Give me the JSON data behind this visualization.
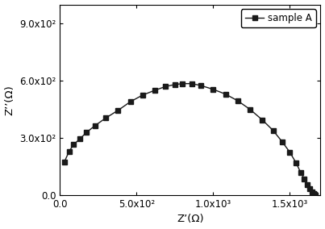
{
  "title": "",
  "xlabel": "Z’(Ω)",
  "ylabel": "Z’’(Ω)",
  "legend_label": "sample A",
  "marker": "s",
  "color": "#1a1a1a",
  "linewidth": 1.0,
  "markersize": 5,
  "xlim": [
    0,
    1700
  ],
  "ylim": [
    0,
    1000
  ],
  "xticks": [
    0,
    500,
    1000,
    1500
  ],
  "yticks": [
    0,
    300,
    600,
    900
  ],
  "xtick_labels": [
    "0.0",
    "5.0x10²",
    "1.0x10³",
    "1.5x10³"
  ],
  "ytick_labels": [
    "0.0",
    "3.0x10²",
    "6.0x10²",
    "9.0x10²"
  ],
  "x_data": [
    30,
    60,
    90,
    130,
    175,
    230,
    300,
    380,
    460,
    540,
    620,
    690,
    750,
    800,
    860,
    920,
    1000,
    1080,
    1160,
    1240,
    1320,
    1390,
    1450,
    1500,
    1540,
    1570,
    1595,
    1615,
    1630,
    1645,
    1655,
    1662,
    1668
  ],
  "y_data": [
    175,
    230,
    265,
    295,
    330,
    365,
    405,
    445,
    490,
    525,
    550,
    570,
    580,
    585,
    585,
    575,
    555,
    530,
    495,
    450,
    395,
    340,
    280,
    225,
    170,
    120,
    85,
    55,
    35,
    18,
    10,
    5,
    2
  ],
  "background_color": "#ffffff",
  "figsize": [
    4.03,
    2.84
  ],
  "dpi": 100
}
